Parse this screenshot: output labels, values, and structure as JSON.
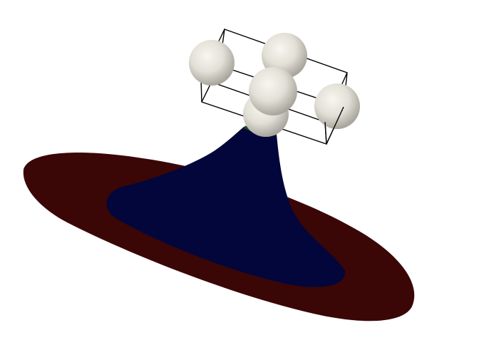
{
  "scene": {
    "background": "#ffffff",
    "colors": {
      "outer_ring": "#3b0606",
      "cone": "#03063a",
      "cone_rim": "#16451c",
      "sphere_light": "#f6f5ef",
      "sphere_mid": "#dcdad0",
      "sphere_dark": "#a9a79d",
      "outline_box": "#000000"
    },
    "objects": [
      {
        "name": "outer-ring",
        "kind": "ellipse-surface"
      },
      {
        "name": "cone-surface",
        "kind": "funnel-surface"
      },
      {
        "name": "bounding-box",
        "kind": "wireframe-cube"
      },
      {
        "name": "spheres",
        "kind": "sphere-cluster",
        "count": 5
      }
    ]
  }
}
